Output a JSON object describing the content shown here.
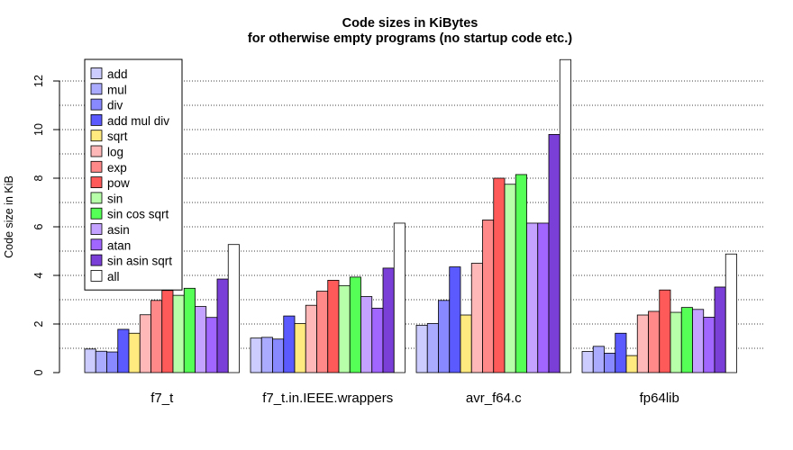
{
  "chart_data": {
    "type": "bar",
    "title": "Code sizes in KiBytes",
    "subtitle": "for otherwise empty programs (no startup code etc.)",
    "xlabel": "",
    "ylabel": "Code size in KiB",
    "ylim": [
      0,
      13
    ],
    "yticks": [
      0,
      2,
      4,
      6,
      8,
      10,
      12
    ],
    "grid_lines": [
      1,
      2,
      3,
      4,
      5,
      6,
      7,
      8,
      9,
      10,
      11,
      12
    ],
    "grid": true,
    "legend_position": "top-left",
    "categories": [
      "f7_t",
      "f7_t.in.IEEE.wrappers",
      "avr_f64.c",
      "fp64lib"
    ],
    "series": [
      {
        "name": "add",
        "color": "#ccccff",
        "values": [
          0.97,
          1.42,
          1.95,
          0.87
        ]
      },
      {
        "name": "mul",
        "color": "#aaaaff",
        "values": [
          0.88,
          1.45,
          2.02,
          1.08
        ]
      },
      {
        "name": "div",
        "color": "#8888ff",
        "values": [
          0.85,
          1.38,
          2.97,
          0.8
        ]
      },
      {
        "name": "add mul div",
        "color": "#5a5aff",
        "values": [
          1.78,
          2.33,
          4.35,
          1.62
        ]
      },
      {
        "name": "sqrt",
        "color": "#ffea80",
        "values": [
          1.62,
          2.02,
          2.37,
          0.7
        ]
      },
      {
        "name": "log",
        "color": "#ffb8b8",
        "values": [
          2.38,
          2.77,
          4.5,
          2.37
        ]
      },
      {
        "name": "exp",
        "color": "#ff8888",
        "values": [
          2.97,
          3.35,
          6.28,
          2.52
        ]
      },
      {
        "name": "pow",
        "color": "#ff5a5a",
        "values": [
          3.38,
          3.8,
          8.0,
          3.4
        ]
      },
      {
        "name": "sin",
        "color": "#b8ffaa",
        "values": [
          3.18,
          3.58,
          7.75,
          2.48
        ]
      },
      {
        "name": "sin cos sqrt",
        "color": "#55ff55",
        "values": [
          3.47,
          3.93,
          8.15,
          2.68
        ]
      },
      {
        "name": "asin",
        "color": "#c4a2ff",
        "values": [
          2.72,
          3.13,
          6.15,
          2.6
        ]
      },
      {
        "name": "atan",
        "color": "#a066ff",
        "values": [
          2.27,
          2.65,
          6.15,
          2.28
        ]
      },
      {
        "name": "sin asin sqrt",
        "color": "#7a3fd6",
        "values": [
          3.85,
          4.3,
          9.8,
          3.52
        ]
      },
      {
        "name": "all",
        "color": "#ffffff",
        "values": [
          5.27,
          6.15,
          12.88,
          4.88
        ]
      }
    ]
  }
}
